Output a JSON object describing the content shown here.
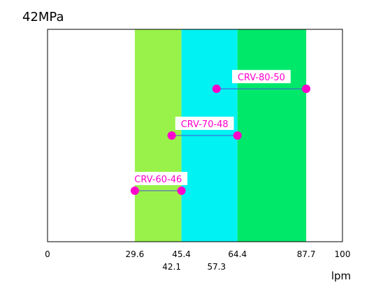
{
  "chart_data": {
    "type": "range",
    "title": "42MPa",
    "xlabel": "lpm",
    "xlim": [
      0,
      100
    ],
    "x_ticks_upper": [
      "0",
      "29.6",
      "45.4",
      "64.4",
      "87.7",
      "100"
    ],
    "x_ticks_upper_values": [
      0,
      29.6,
      45.4,
      64.4,
      87.7,
      100
    ],
    "x_ticks_lower": [
      "42.1",
      "57.3"
    ],
    "x_ticks_lower_values": [
      42.1,
      57.3
    ],
    "bands": [
      {
        "from": 29.6,
        "to": 45.4,
        "color": "#99f24a"
      },
      {
        "from": 45.4,
        "to": 64.4,
        "color": "#00f2f2"
      },
      {
        "from": 64.4,
        "to": 87.7,
        "color": "#00e86a"
      }
    ],
    "series": [
      {
        "name": "CRV-60-46",
        "from": 29.6,
        "to": 45.4,
        "level": 0.24
      },
      {
        "name": "CRV-70-48",
        "from": 42.1,
        "to": 64.4,
        "level": 0.5
      },
      {
        "name": "CRV-80-50",
        "from": 57.3,
        "to": 87.7,
        "level": 0.72
      }
    ],
    "marker_color": "#ff00cc",
    "line_color": "#4a52d4",
    "grid": false
  }
}
